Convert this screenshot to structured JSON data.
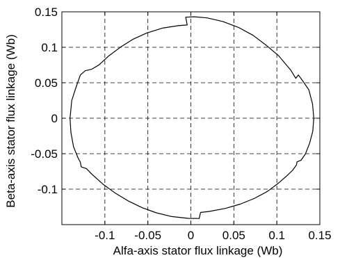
{
  "chart_data": {
    "type": "line",
    "title": "",
    "xlabel": "Alfa-axis stator flux linkage (Wb)",
    "ylabel": "Beta-axis stator flux linkage (Wb)",
    "xlim": [
      -0.15,
      0.15
    ],
    "ylim": [
      -0.15,
      0.15
    ],
    "grid": true,
    "grid_style": "dashed",
    "xticks": [
      -0.1,
      -0.05,
      0,
      0.05,
      0.1,
      0.15
    ],
    "xtick_labels": [
      "-0.1",
      "-0.05",
      "0",
      "0.05",
      "0.1",
      "0.15"
    ],
    "yticks": [
      -0.1,
      -0.05,
      0,
      0.05,
      0.1,
      0.15
    ],
    "ytick_labels": [
      "-0.1",
      "-0.05",
      "0",
      "0.05",
      "0.1",
      "0.15"
    ],
    "line_color": "#000000",
    "series": [
      {
        "points": [
          [
            0.143,
            0.0
          ],
          [
            0.1415,
            0.02
          ],
          [
            0.1372,
            0.04
          ],
          [
            0.1305,
            0.052
          ],
          [
            0.125,
            0.061
          ],
          [
            0.122,
            0.0563
          ],
          [
            0.116,
            0.068
          ],
          [
            0.1021,
            0.088
          ],
          [
            0.088,
            0.1025
          ],
          [
            0.0722,
            0.117
          ],
          [
            0.0553,
            0.128
          ],
          [
            0.0372,
            0.1364
          ],
          [
            0.0188,
            0.1415
          ],
          [
            0.004,
            0.143
          ],
          [
            -0.006,
            0.1425
          ],
          [
            -0.0043,
            0.1315
          ],
          [
            -0.0146,
            0.1305
          ],
          [
            -0.033,
            0.1271
          ],
          [
            -0.0513,
            0.1202
          ],
          [
            -0.0675,
            0.1112
          ],
          [
            -0.0818,
            0.1002
          ],
          [
            -0.0952,
            0.0881
          ],
          [
            -0.1068,
            0.0752
          ],
          [
            -0.1155,
            0.069
          ],
          [
            -0.1228,
            0.067
          ],
          [
            -0.1285,
            0.061
          ],
          [
            -0.1332,
            0.045
          ],
          [
            -0.1385,
            0.025
          ],
          [
            -0.1405,
            0.0
          ],
          [
            -0.1395,
            -0.02
          ],
          [
            -0.1365,
            -0.04
          ],
          [
            -0.1312,
            -0.0559
          ],
          [
            -0.1285,
            -0.0621
          ],
          [
            -0.1275,
            -0.0685
          ],
          [
            -0.1215,
            -0.071
          ],
          [
            -0.1151,
            -0.079
          ],
          [
            -0.102,
            -0.0932
          ],
          [
            -0.0885,
            -0.1051
          ],
          [
            -0.0729,
            -0.1166
          ],
          [
            -0.0565,
            -0.1262
          ],
          [
            -0.0402,
            -0.1333
          ],
          [
            -0.0222,
            -0.1386
          ],
          [
            -0.003,
            -0.1412
          ],
          [
            0.0097,
            -0.1414
          ],
          [
            0.0112,
            -0.1328
          ],
          [
            0.0215,
            -0.1314
          ],
          [
            0.0402,
            -0.1272
          ],
          [
            0.0574,
            -0.1211
          ],
          [
            0.0736,
            -0.1132
          ],
          [
            0.0891,
            -0.1031
          ],
          [
            0.1021,
            -0.0913
          ],
          [
            0.1116,
            -0.0812
          ],
          [
            0.1182,
            -0.0735
          ],
          [
            0.1228,
            -0.0658
          ],
          [
            0.1235,
            -0.0615
          ],
          [
            0.1282,
            -0.0592
          ],
          [
            0.1332,
            -0.0505
          ],
          [
            0.1382,
            -0.035
          ],
          [
            0.1418,
            -0.018
          ],
          [
            0.143,
            0.0
          ]
        ]
      }
    ]
  }
}
